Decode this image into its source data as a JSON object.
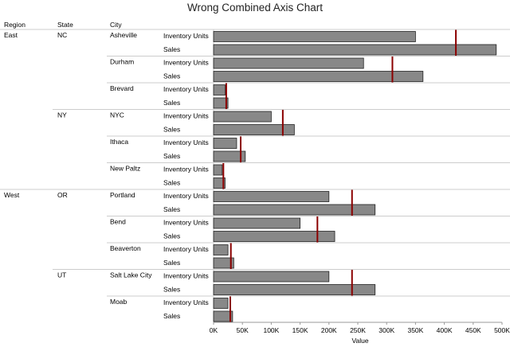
{
  "chart_data": {
    "type": "bar",
    "title": "Wrong Combined Axis Chart",
    "xlabel": "Value",
    "xlim": [
      0,
      500000
    ],
    "xticks": [
      0,
      50000,
      100000,
      150000,
      200000,
      250000,
      300000,
      350000,
      400000,
      450000,
      500000
    ],
    "tick_labels": [
      "0K",
      "50K",
      "100K",
      "150K",
      "200K",
      "250K",
      "300K",
      "350K",
      "400K",
      "450K",
      "500K"
    ],
    "columns": [
      "Region",
      "State",
      "City"
    ],
    "measures": [
      "Inventory Units",
      "Sales"
    ],
    "colors": {
      "bar": "#888888",
      "bar_stroke": "#222222",
      "reference_line": "#8b0000",
      "divider": "#cccccc"
    },
    "rows": [
      {
        "region": "East",
        "state": "NC",
        "city": "Asheville",
        "inventory_units": 350000,
        "sales": 490000,
        "reference": 420000
      },
      {
        "region": "",
        "state": "",
        "city": "Durham",
        "inventory_units": 260000,
        "sales": 363000,
        "reference": 310000
      },
      {
        "region": "",
        "state": "",
        "city": "Brevard",
        "inventory_units": 20000,
        "sales": 25000,
        "reference": 22000
      },
      {
        "region": "",
        "state": "NY",
        "city": "NYC",
        "inventory_units": 100000,
        "sales": 140000,
        "reference": 120000
      },
      {
        "region": "",
        "state": "",
        "city": "Ithaca",
        "inventory_units": 40000,
        "sales": 55000,
        "reference": 47000
      },
      {
        "region": "",
        "state": "",
        "city": "New Paltz",
        "inventory_units": 15000,
        "sales": 20000,
        "reference": 17000
      },
      {
        "region": "West",
        "state": "OR",
        "city": "Portland",
        "inventory_units": 200000,
        "sales": 280000,
        "reference": 240000
      },
      {
        "region": "",
        "state": "",
        "city": "Bend",
        "inventory_units": 150000,
        "sales": 210000,
        "reference": 180000
      },
      {
        "region": "",
        "state": "",
        "city": "Beaverton",
        "inventory_units": 25000,
        "sales": 35000,
        "reference": 30000
      },
      {
        "region": "",
        "state": "UT",
        "city": "Salt Lake City",
        "inventory_units": 200000,
        "sales": 280000,
        "reference": 240000
      },
      {
        "region": "",
        "state": "",
        "city": "Moab",
        "inventory_units": 25000,
        "sales": 33000,
        "reference": 29000
      }
    ]
  }
}
